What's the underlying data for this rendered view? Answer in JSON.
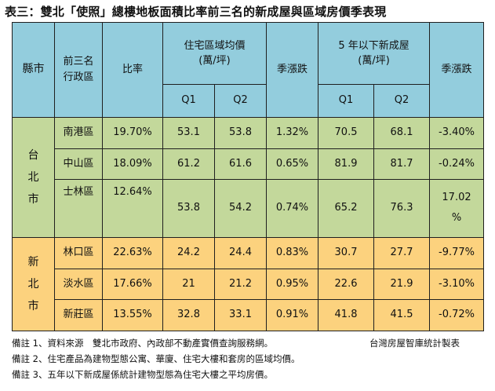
{
  "title": "表三：雙北「使照」總樓地板面積比率前三名的新成屋與區域房價季表現",
  "header": {
    "city": "縣市",
    "district_line1": "前三名",
    "district_line2": "行政區",
    "ratio": "比率",
    "avg_price_title": "住宅區域均價",
    "avg_price_unit": "(萬/坪)",
    "qoq1": "季漲跌",
    "new_title": "5 年以下新成屋",
    "new_unit": "(萬/坪)",
    "qoq2": "季漲跌",
    "q1": "Q1",
    "q2": "Q2"
  },
  "groups": [
    {
      "city_chars": [
        "台",
        "北",
        "市"
      ],
      "rows": [
        {
          "district": "南港區",
          "ratio": "19.70%",
          "avg_q1": "53.1",
          "avg_q2": "53.8",
          "avg_qoq": "1.32%",
          "new_q1": "70.5",
          "new_q2": "68.1",
          "new_qoq": "-3.40%"
        },
        {
          "district": "中山區",
          "ratio": "18.09%",
          "avg_q1": "61.2",
          "avg_q2": "61.6",
          "avg_qoq": "0.65%",
          "new_q1": "81.9",
          "new_q2": "81.7",
          "new_qoq": "-0.24%"
        },
        {
          "district": "士林區",
          "ratio": "12.64%",
          "avg_q1": "53.8",
          "avg_q2": "54.2",
          "avg_qoq": "0.74%",
          "new_q1": "65.2",
          "new_q2": "76.3",
          "new_qoq_line1": "17.02",
          "new_qoq_line2": "%"
        }
      ]
    },
    {
      "city_chars": [
        "新",
        "北",
        "市"
      ],
      "rows": [
        {
          "district": "林口區",
          "ratio": "22.63%",
          "avg_q1": "24.2",
          "avg_q2": "24.4",
          "avg_qoq": "0.83%",
          "new_q1": "30.7",
          "new_q2": "27.7",
          "new_qoq": "-9.77%"
        },
        {
          "district": "淡水區",
          "ratio": "17.66%",
          "avg_q1": "21",
          "avg_q2": "21.2",
          "avg_qoq": "0.95%",
          "new_q1": "22.6",
          "new_q2": "21.9",
          "new_qoq": "-3.10%"
        },
        {
          "district": "新莊區",
          "ratio": "13.55%",
          "avg_q1": "32.8",
          "avg_q2": "33.1",
          "avg_qoq": "0.91%",
          "new_q1": "41.8",
          "new_q2": "41.5",
          "new_qoq": "-0.72%"
        }
      ]
    }
  ],
  "notes": [
    "備註 1、資料來源　雙北市政府、內政部不動產實價查詢服務網。",
    "備註 2、住宅產品為建物型態公寓、華廈、住宅大樓和套房的區域均價。",
    "備註 3、五年以下新成屋係統計建物型態為住宅大樓之平均房價。"
  ],
  "credit": "台灣房屋智庫統計製表",
  "colors": {
    "header": "#93cddd",
    "taipei": "#c3d89b",
    "new_taipei": "#fcd27e",
    "border": "#1f1f1f"
  }
}
